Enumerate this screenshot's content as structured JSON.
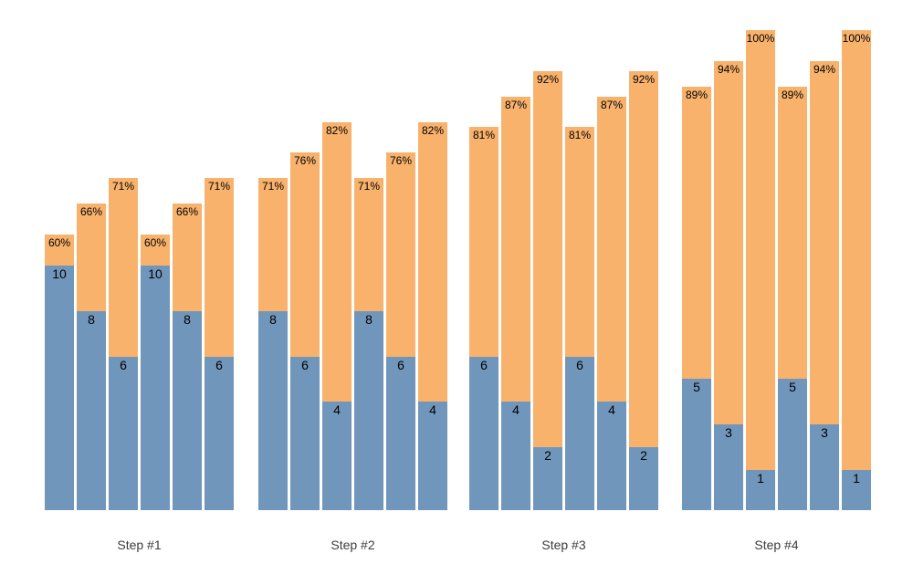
{
  "chart_data": {
    "type": "bar",
    "subtype": "stacked-columns",
    "title": "",
    "xlabel": "",
    "ylabel": "",
    "axes_visible": false,
    "gridlines": false,
    "legend_position": "none",
    "colors": {
      "blue_segment": "#7096BB",
      "orange_segment": "#F8B26C",
      "bar_label_text": "#000000",
      "group_label_text": "#3D3D3D",
      "background": "#FFFFFF"
    },
    "groups": [
      {
        "label": "Step #1",
        "bars": [
          {
            "percent": 60,
            "percent_label": "60%",
            "blue_value": 10,
            "blue_label": "10"
          },
          {
            "percent": 66,
            "percent_label": "66%",
            "blue_value": 8,
            "blue_label": "8"
          },
          {
            "percent": 71,
            "percent_label": "71%",
            "blue_value": 6,
            "blue_label": "6"
          },
          {
            "percent": 60,
            "percent_label": "60%",
            "blue_value": 10,
            "blue_label": "10"
          },
          {
            "percent": 66,
            "percent_label": "66%",
            "blue_value": 8,
            "blue_label": "8"
          },
          {
            "percent": 71,
            "percent_label": "71%",
            "blue_value": 6,
            "blue_label": "6"
          }
        ]
      },
      {
        "label": "Step #2",
        "bars": [
          {
            "percent": 71,
            "percent_label": "71%",
            "blue_value": 8,
            "blue_label": "8"
          },
          {
            "percent": 76,
            "percent_label": "76%",
            "blue_value": 6,
            "blue_label": "6"
          },
          {
            "percent": 82,
            "percent_label": "82%",
            "blue_value": 4,
            "blue_label": "4"
          },
          {
            "percent": 71,
            "percent_label": "71%",
            "blue_value": 8,
            "blue_label": "8"
          },
          {
            "percent": 76,
            "percent_label": "76%",
            "blue_value": 6,
            "blue_label": "6"
          },
          {
            "percent": 82,
            "percent_label": "82%",
            "blue_value": 4,
            "blue_label": "4"
          }
        ]
      },
      {
        "label": "Step #3",
        "bars": [
          {
            "percent": 81,
            "percent_label": "81%",
            "blue_value": 6,
            "blue_label": "6"
          },
          {
            "percent": 87,
            "percent_label": "87%",
            "blue_value": 4,
            "blue_label": "4"
          },
          {
            "percent": 92,
            "percent_label": "92%",
            "blue_value": 2,
            "blue_label": "2"
          },
          {
            "percent": 81,
            "percent_label": "81%",
            "blue_value": 6,
            "blue_label": "6"
          },
          {
            "percent": 87,
            "percent_label": "87%",
            "blue_value": 4,
            "blue_label": "4"
          },
          {
            "percent": 92,
            "percent_label": "92%",
            "blue_value": 2,
            "blue_label": "2"
          }
        ]
      },
      {
        "label": "Step #4",
        "bars": [
          {
            "percent": 89,
            "percent_label": "89%",
            "blue_value": 5,
            "blue_label": "5"
          },
          {
            "percent": 94,
            "percent_label": "94%",
            "blue_value": 3,
            "blue_label": "3"
          },
          {
            "percent": 100,
            "percent_label": "100%",
            "blue_value": 1,
            "blue_label": "1"
          },
          {
            "percent": 89,
            "percent_label": "89%",
            "blue_value": 5,
            "blue_label": "5"
          },
          {
            "percent": 94,
            "percent_label": "94%",
            "blue_value": 3,
            "blue_label": "3"
          },
          {
            "percent": 100,
            "percent_label": "100%",
            "blue_value": 1,
            "blue_label": "1"
          }
        ]
      }
    ]
  }
}
